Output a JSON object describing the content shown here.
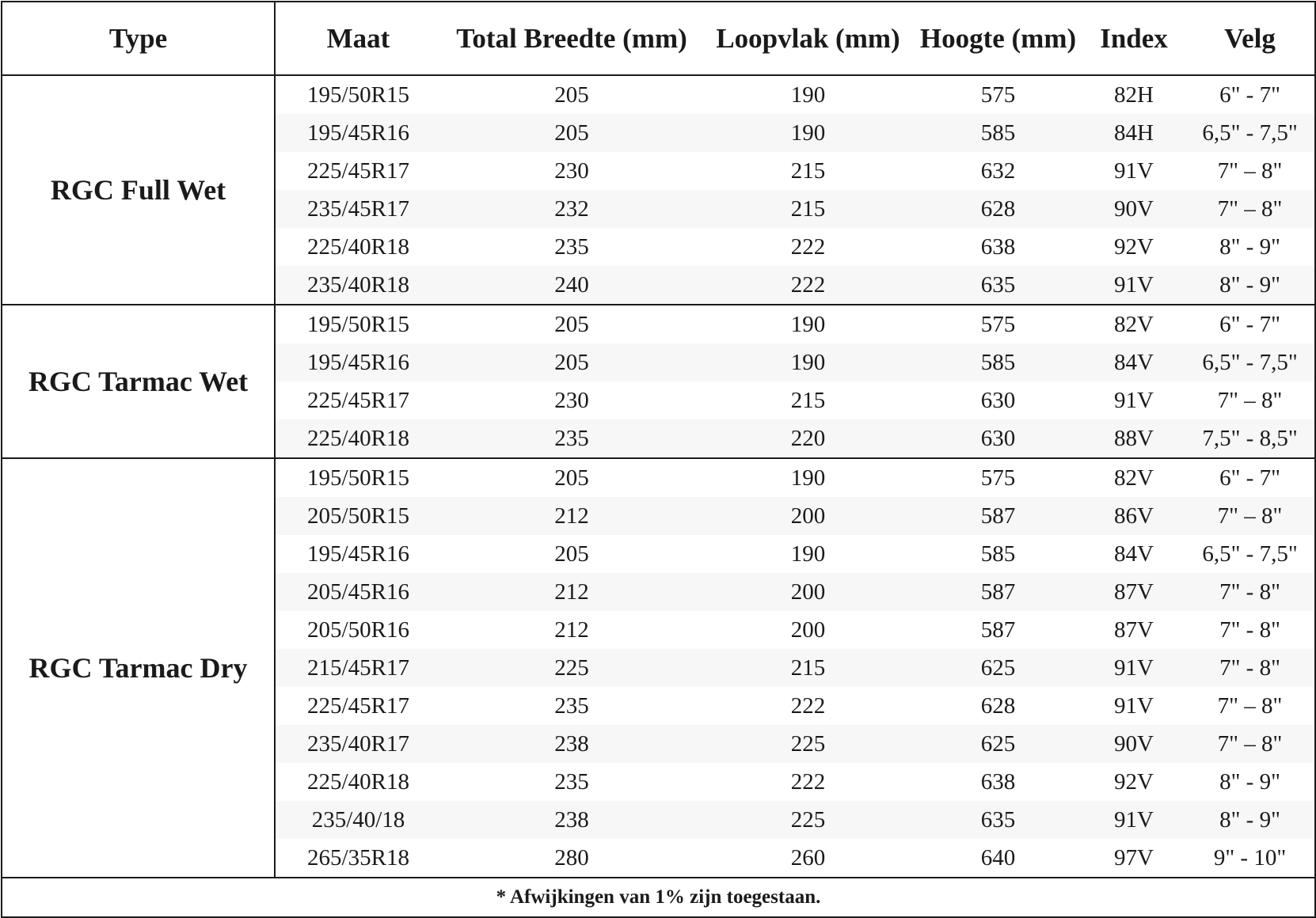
{
  "headers": [
    "Type",
    "Maat",
    "Total Breedte (mm)",
    "Loopvlak (mm)",
    "Hoogte (mm)",
    "Index",
    "Velg"
  ],
  "groups": [
    {
      "type": "RGC Full Wet",
      "rows": [
        [
          "195/50R15",
          "205",
          "190",
          "575",
          "82H",
          "6\" - 7\""
        ],
        [
          "195/45R16",
          "205",
          "190",
          "585",
          "84H",
          "6,5\" - 7,5\""
        ],
        [
          "225/45R17",
          "230",
          "215",
          "632",
          "91V",
          "7\" – 8\""
        ],
        [
          "235/45R17",
          "232",
          "215",
          "628",
          "90V",
          "7\" – 8\""
        ],
        [
          "225/40R18",
          "235",
          "222",
          "638",
          "92V",
          "8\" - 9\""
        ],
        [
          "235/40R18",
          "240",
          "222",
          "635",
          "91V",
          "8\" - 9\""
        ]
      ]
    },
    {
      "type": "RGC Tarmac Wet",
      "rows": [
        [
          "195/50R15",
          "205",
          "190",
          "575",
          "82V",
          "6\" - 7\""
        ],
        [
          "195/45R16",
          "205",
          "190",
          "585",
          "84V",
          "6,5\" - 7,5\""
        ],
        [
          "225/45R17",
          "230",
          "215",
          "630",
          "91V",
          "7\" – 8\""
        ],
        [
          "225/40R18",
          "235",
          "220",
          "630",
          "88V",
          "7,5\" - 8,5\""
        ]
      ]
    },
    {
      "type": "RGC Tarmac Dry",
      "rows": [
        [
          "195/50R15",
          "205",
          "190",
          "575",
          "82V",
          "6\" - 7\""
        ],
        [
          "205/50R15",
          "212",
          "200",
          "587",
          "86V",
          "7\" – 8\""
        ],
        [
          "195/45R16",
          "205",
          "190",
          "585",
          "84V",
          "6,5\" - 7,5\""
        ],
        [
          "205/45R16",
          "212",
          "200",
          "587",
          "87V",
          "7\" - 8\""
        ],
        [
          "205/50R16",
          "212",
          "200",
          "587",
          "87V",
          "7\" - 8\""
        ],
        [
          "215/45R17",
          "225",
          "215",
          "625",
          "91V",
          "7\" - 8\""
        ],
        [
          "225/45R17",
          "235",
          "222",
          "628",
          "91V",
          "7\" – 8\""
        ],
        [
          "235/40R17",
          "238",
          "225",
          "625",
          "90V",
          "7\" – 8\""
        ],
        [
          "225/40R18",
          "235",
          "222",
          "638",
          "92V",
          "8\" - 9\""
        ],
        [
          "235/40/18",
          "238",
          "225",
          "635",
          "91V",
          "8\" - 9\""
        ],
        [
          "265/35R18",
          "280",
          "260",
          "640",
          "97V",
          "9\" - 10\""
        ]
      ]
    }
  ],
  "footnote": "* Afwijkingen van 1% zijn toegestaan."
}
